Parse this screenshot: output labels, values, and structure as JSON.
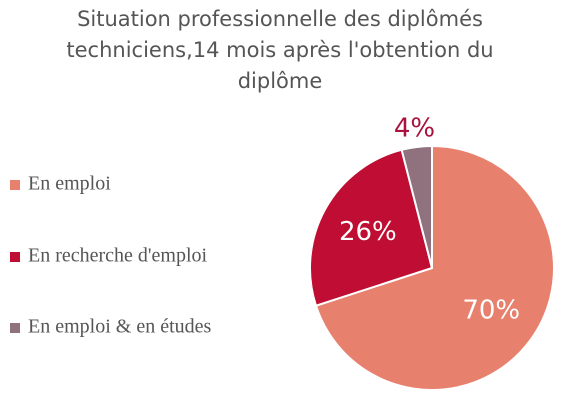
{
  "chart_data": {
    "type": "pie",
    "title": "Situation professionnelle des diplômés techniciens,14 mois après l'obtention du diplôme",
    "categories": [
      "En emploi",
      "En recherche d'emploi",
      "En emploi & en études"
    ],
    "values": [
      70,
      26,
      4
    ],
    "value_labels": [
      "70%",
      "26%",
      "4%"
    ],
    "colors": [
      "#e8806e",
      "#bf0d33",
      "#8f727e"
    ],
    "legend": "left"
  }
}
